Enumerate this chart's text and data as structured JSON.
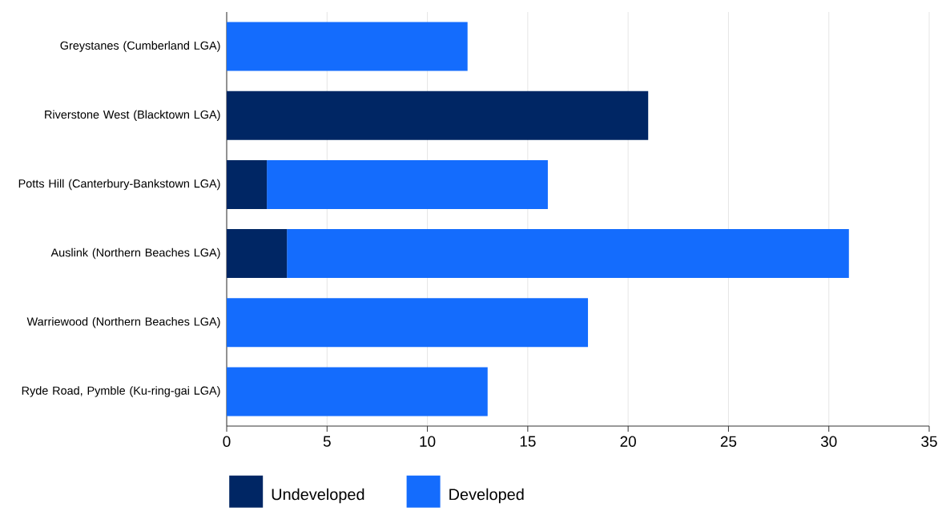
{
  "chart_data": {
    "type": "bar",
    "orientation": "horizontal",
    "stacked": true,
    "categories": [
      "Greystanes (Cumberland LGA)",
      "Riverstone West (Blacktown LGA)",
      "Potts Hill (Canterbury-Bankstown LGA)",
      "Auslink (Northern Beaches LGA)",
      "Warriewood (Northern Beaches LGA)",
      "Ryde Road, Pymble (Ku-ring-gai LGA)"
    ],
    "series": [
      {
        "name": "Undeveloped",
        "color": "#002664",
        "values": [
          0,
          21,
          2,
          3,
          0,
          0
        ]
      },
      {
        "name": "Developed",
        "color": "#146cfd",
        "values": [
          12,
          0,
          14,
          28,
          18,
          13
        ]
      }
    ],
    "xlim": [
      0,
      35
    ],
    "xticks": [
      0,
      5,
      10,
      15,
      20,
      25,
      30,
      35
    ],
    "grid": "x",
    "legend": "bottom"
  }
}
